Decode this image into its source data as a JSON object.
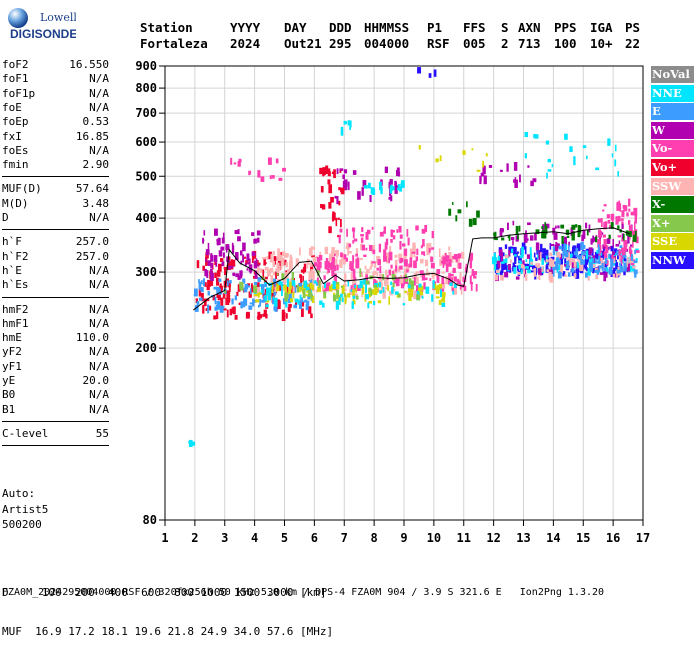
{
  "logo": {
    "line1": "Lowell",
    "line2": "DIGISONDE"
  },
  "header": {
    "labels": [
      "Station",
      "YYYY",
      "DAY",
      "DDD",
      "HHMMSS",
      "P1",
      "FFS",
      "S",
      "AXN",
      "PPS",
      "IGA",
      "PS"
    ],
    "values": [
      "Fortaleza",
      "2024",
      "Out21",
      "295",
      "004000",
      "RSF",
      "005",
      "2",
      "713",
      "100",
      "10+",
      "22"
    ]
  },
  "params": {
    "groups": [
      [
        {
          "k": "foF2",
          "v": "16.550"
        },
        {
          "k": "foF1",
          "v": "N/A"
        },
        {
          "k": "foF1p",
          "v": "N/A"
        },
        {
          "k": "foE",
          "v": "N/A"
        },
        {
          "k": "foEp",
          "v": "0.53"
        },
        {
          "k": "fxI",
          "v": "16.85"
        },
        {
          "k": "foEs",
          "v": "N/A"
        },
        {
          "k": "fmin",
          "v": "2.90"
        }
      ],
      [
        {
          "k": "MUF(D)",
          "v": "57.64"
        },
        {
          "k": "M(D)",
          "v": "3.48"
        },
        {
          "k": "D",
          "v": "N/A"
        }
      ],
      [
        {
          "k": "h`F",
          "v": "257.0"
        },
        {
          "k": "h`F2",
          "v": "257.0"
        },
        {
          "k": "h`E",
          "v": "N/A"
        },
        {
          "k": "h`Es",
          "v": "N/A"
        }
      ],
      [
        {
          "k": "hmF2",
          "v": "N/A"
        },
        {
          "k": "hmF1",
          "v": "N/A"
        },
        {
          "k": "hmE",
          "v": "110.0"
        },
        {
          "k": "yF2",
          "v": "N/A"
        },
        {
          "k": "yF1",
          "v": "N/A"
        },
        {
          "k": "yE",
          "v": "20.0"
        },
        {
          "k": "B0",
          "v": "N/A"
        },
        {
          "k": "B1",
          "v": "N/A"
        }
      ],
      [
        {
          "k": "C-level",
          "v": "55"
        }
      ]
    ]
  },
  "auto": {
    "line1": "Auto:",
    "line2": "Artist5",
    "line3": "500200"
  },
  "legend": [
    {
      "label": "NoVal",
      "color": "#8c8c8c"
    },
    {
      "label": "NNE",
      "color": "#00e5ff"
    },
    {
      "label": "E",
      "color": "#3c9cff"
    },
    {
      "label": "W",
      "color": "#b000b0"
    },
    {
      "label": "Vo-",
      "color": "#ff3fb0"
    },
    {
      "label": "Vo+",
      "color": "#f0002c"
    },
    {
      "label": "SSW",
      "color": "#ffb4b4"
    },
    {
      "label": "X-",
      "color": "#007800"
    },
    {
      "label": "X+",
      "color": "#86c84c"
    },
    {
      "label": "SSE",
      "color": "#d8d800"
    },
    {
      "label": "NNW",
      "color": "#2810ff"
    }
  ],
  "bottom": {
    "d_line": "D     100  200  400  600  800 1000 1500 3000 [km]",
    "muf_line": "MUF  16.9 17.2 18.1 19.6 21.8 24.9 34.0 57.6 [MHz]"
  },
  "footer": "FZA0M_2024295004000.RSF / 320fx256h 50 kHz 5.0 km / DPS-4 FZA0M 904 / 3.9 S 321.6 E   Ion2Png 1.3.20",
  "chart_data": {
    "type": "scatter",
    "xlim": [
      1,
      17
    ],
    "ylim": [
      80,
      900
    ],
    "y_scale": "log",
    "x_ticks": [
      1,
      2,
      3,
      4,
      5,
      6,
      7,
      8,
      9,
      10,
      11,
      12,
      13,
      14,
      15,
      16,
      17
    ],
    "y_ticks": [
      80,
      200,
      300,
      400,
      500,
      600,
      700,
      800,
      900
    ],
    "grid": true,
    "trace": {
      "x": [
        1.95,
        2.5,
        3.0,
        3.15,
        3.5,
        4.0,
        4.5,
        5.0,
        5.5,
        5.9,
        6.3,
        6.7,
        7.0,
        7.5,
        8.0,
        8.5,
        9.0,
        9.5,
        10.0,
        10.5,
        10.8,
        11.0,
        11.3,
        11.6,
        12.0,
        12.5,
        13.0,
        13.5,
        14.0,
        14.5,
        15.0,
        15.5,
        16.0,
        16.55
      ],
      "y": [
        245,
        262,
        272,
        338,
        315,
        302,
        280,
        290,
        316,
        318,
        282,
        295,
        286,
        288,
        292,
        290,
        291,
        296,
        298,
        289,
        280,
        278,
        358,
        360,
        360,
        365,
        368,
        370,
        372,
        368,
        375,
        378,
        380,
        368
      ]
    },
    "clusters": [
      {
        "series": "Vo+",
        "x": [
          2.0,
          6.0
        ],
        "y": [
          235,
          330
        ],
        "n": 160
      },
      {
        "series": "E",
        "x": [
          2.0,
          6.0
        ],
        "y": [
          245,
          290
        ],
        "n": 90
      },
      {
        "series": "W",
        "x": [
          2.2,
          4.2
        ],
        "y": [
          290,
          375
        ],
        "n": 70
      },
      {
        "series": "SSW",
        "x": [
          4.0,
          11.0
        ],
        "y": [
          265,
          345
        ],
        "n": 220
      },
      {
        "series": "Vo-",
        "x": [
          6.0,
          11.5
        ],
        "y": [
          270,
          330
        ],
        "n": 140
      },
      {
        "series": "SSE",
        "x": [
          4.0,
          10.5
        ],
        "y": [
          255,
          280
        ],
        "n": 80
      },
      {
        "series": "NNE",
        "x": [
          4.0,
          11.0
        ],
        "y": [
          250,
          285
        ],
        "n": 70
      },
      {
        "series": "X+",
        "x": [
          3.0,
          9.5
        ],
        "y": [
          260,
          300
        ],
        "n": 40
      },
      {
        "series": "NNW",
        "x": [
          12.0,
          16.5
        ],
        "y": [
          295,
          345
        ],
        "n": 150
      },
      {
        "series": "NNE",
        "x": [
          12.0,
          16.8
        ],
        "y": [
          300,
          340
        ],
        "n": 80
      },
      {
        "series": "W",
        "x": [
          12.0,
          16.8
        ],
        "y": [
          290,
          390
        ],
        "n": 90
      },
      {
        "series": "SSW",
        "x": [
          12.0,
          16.8
        ],
        "y": [
          290,
          330
        ],
        "n": 60
      },
      {
        "series": "Vo-",
        "x": [
          15.5,
          16.9
        ],
        "y": [
          310,
          440
        ],
        "n": 70
      },
      {
        "series": "E",
        "x": [
          14.0,
          16.8
        ],
        "y": [
          295,
          345
        ],
        "n": 60
      },
      {
        "series": "X-",
        "x": [
          12.0,
          16.8
        ],
        "y": [
          355,
          385
        ],
        "n": 40
      },
      {
        "series": "W",
        "x": [
          6.5,
          9.0
        ],
        "y": [
          440,
          520
        ],
        "n": 30
      },
      {
        "series": "NNE",
        "x": [
          7.5,
          9.0
        ],
        "y": [
          460,
          480
        ],
        "n": 15
      },
      {
        "series": "NNE",
        "x": [
          13.0,
          16.2
        ],
        "y": [
          500,
          640
        ],
        "n": 20
      },
      {
        "series": "W",
        "x": [
          11.5,
          13.5
        ],
        "y": [
          480,
          530
        ],
        "n": 18
      },
      {
        "series": "Vo-",
        "x": [
          3.2,
          5.0
        ],
        "y": [
          490,
          545
        ],
        "n": 14
      },
      {
        "series": "SSE",
        "x": [
          9.5,
          12.5
        ],
        "y": [
          500,
          590
        ],
        "n": 8
      },
      {
        "series": "NNE",
        "x": [
          6.8,
          8.0
        ],
        "y": [
          630,
          670
        ],
        "n": 6
      },
      {
        "series": "Vo+",
        "x": [
          6.2,
          7.0
        ],
        "y": [
          360,
          520
        ],
        "n": 30
      },
      {
        "series": "Vo-",
        "x": [
          6.8,
          10.0
        ],
        "y": [
          330,
          380
        ],
        "n": 50
      },
      {
        "series": "X-",
        "x": [
          10.5,
          11.5
        ],
        "y": [
          380,
          460
        ],
        "n": 8
      },
      {
        "series": "NNW",
        "x": [
          9.0,
          10.5
        ],
        "y": [
          850,
          880
        ],
        "n": 3
      },
      {
        "series": "NNE",
        "x": [
          1.8,
          2.0
        ],
        "y": [
          120,
          122
        ],
        "n": 3
      }
    ]
  }
}
